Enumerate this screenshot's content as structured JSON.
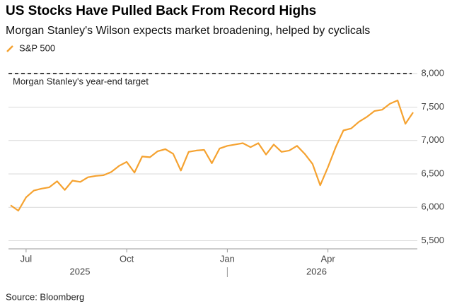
{
  "chart_data": {
    "type": "line",
    "title": "US Stocks Have Pulled Back From Record Highs",
    "subtitle": "Morgan Stanley's Wilson expects market broadening, helped by cyclicals",
    "source": "Source: Bloomberg",
    "categories": [
      null,
      null,
      "Jul",
      null,
      null,
      null,
      null,
      null,
      null,
      null,
      null,
      null,
      null,
      null,
      null,
      "Oct",
      null,
      null,
      null,
      null,
      null,
      null,
      null,
      null,
      null,
      null,
      null,
      null,
      "Jan",
      null,
      null,
      null,
      null,
      null,
      null,
      null,
      null,
      null,
      null,
      null,
      null,
      "Apr",
      null,
      null,
      null,
      null,
      null,
      null,
      null,
      null,
      null,
      null,
      null
    ],
    "x_year_labels": [
      "2025",
      "2026"
    ],
    "series": [
      {
        "name": "S&P 500",
        "color": "#f5a230",
        "values": [
          6030,
          5950,
          6150,
          6250,
          6280,
          6300,
          6390,
          6260,
          6400,
          6380,
          6450,
          6470,
          6480,
          6530,
          6620,
          6680,
          6520,
          6760,
          6750,
          6840,
          6870,
          6800,
          6550,
          6830,
          6850,
          6860,
          6660,
          6880,
          6920,
          6940,
          6960,
          6900,
          6960,
          6790,
          6940,
          6830,
          6850,
          6920,
          6800,
          6650,
          6330,
          6600,
          6900,
          7150,
          7180,
          7280,
          7350,
          7440,
          7460,
          7550,
          7600,
          7250,
          7420
        ]
      }
    ],
    "target": {
      "value": 8000,
      "label": "Morgan Stanley's year-end target"
    },
    "ylim": [
      5400,
      8150
    ],
    "yticks": [
      {
        "value": 5500,
        "label": "5,500"
      },
      {
        "value": 6000,
        "label": "6,000"
      },
      {
        "value": 6500,
        "label": "6,500"
      },
      {
        "value": 7000,
        "label": "7,000"
      },
      {
        "value": 7500,
        "label": "7,500"
      },
      {
        "value": 8000,
        "label": "8,000"
      }
    ],
    "grid": true
  }
}
